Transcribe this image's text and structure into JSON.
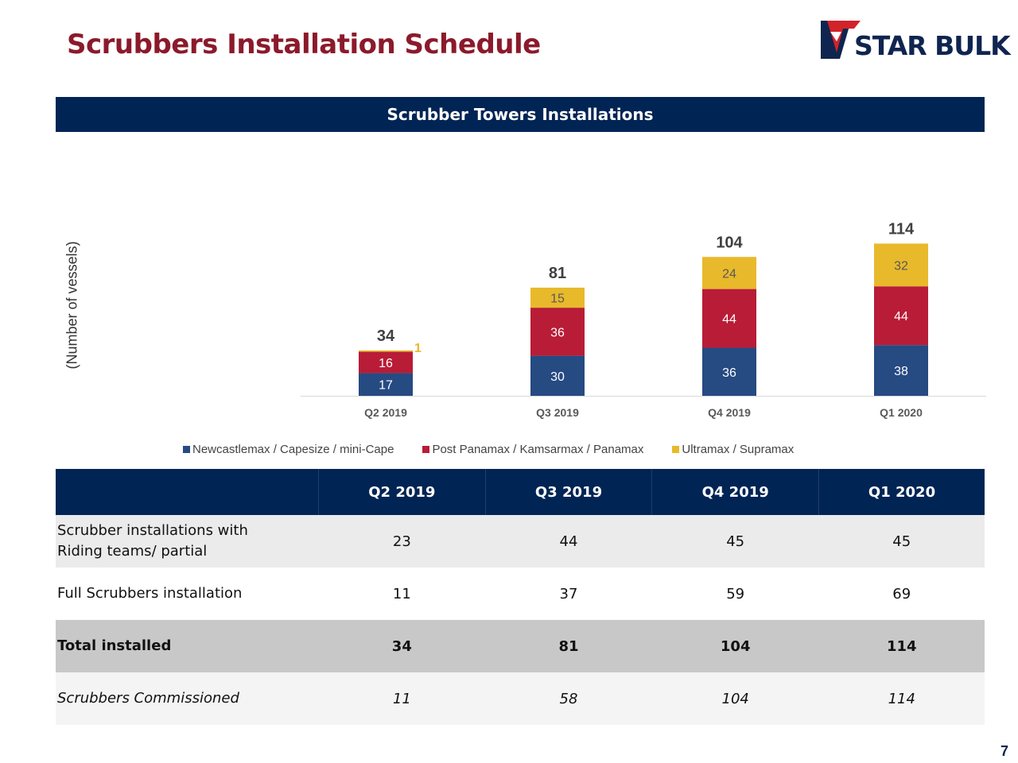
{
  "slide": {
    "title": "Scrubbers Installation Schedule",
    "page_number": "7"
  },
  "logo": {
    "text": "STAR BULK",
    "colors": {
      "red": "#d2232a",
      "navy": "#0f2550"
    }
  },
  "colors": {
    "band_bg": "#002454",
    "title": "#8b1a2b"
  },
  "chart_data": {
    "type": "bar",
    "stacked": true,
    "title": "Scrubber Towers Installations",
    "ylabel": "(Number of vessels)",
    "xlabel": "",
    "categories": [
      "Q2 2019",
      "Q3 2019",
      "Q4 2019",
      "Q1 2020"
    ],
    "series": [
      {
        "name": "Newcastlemax / Capesize / mini-Cape",
        "color": "#264a82",
        "values": [
          17,
          30,
          36,
          38
        ]
      },
      {
        "name": "Post Panamax / Kamsarmax / Panamax",
        "color": "#b81c36",
        "values": [
          16,
          36,
          44,
          44
        ]
      },
      {
        "name": "Ultramax / Supramax",
        "color": "#e8b92a",
        "values": [
          1,
          15,
          24,
          32
        ]
      }
    ],
    "totals": [
      34,
      81,
      104,
      114
    ],
    "legend": "bottom",
    "grid": false
  },
  "table": {
    "headers": [
      "",
      "Q2 2019",
      "Q3 2019",
      "Q4 2019",
      "Q1 2020"
    ],
    "rows": [
      {
        "label": "Scrubber installations with Riding teams/ partial",
        "values": [
          "23",
          "44",
          "45",
          "45"
        ]
      },
      {
        "label": "Full Scrubbers installation",
        "values": [
          "11",
          "37",
          "59",
          "69"
        ]
      },
      {
        "label": "Total installed",
        "values": [
          "34",
          "81",
          "104",
          "114"
        ]
      },
      {
        "label": "Scrubbers Commissioned",
        "values": [
          "11",
          "58",
          "104",
          "114"
        ]
      }
    ]
  }
}
